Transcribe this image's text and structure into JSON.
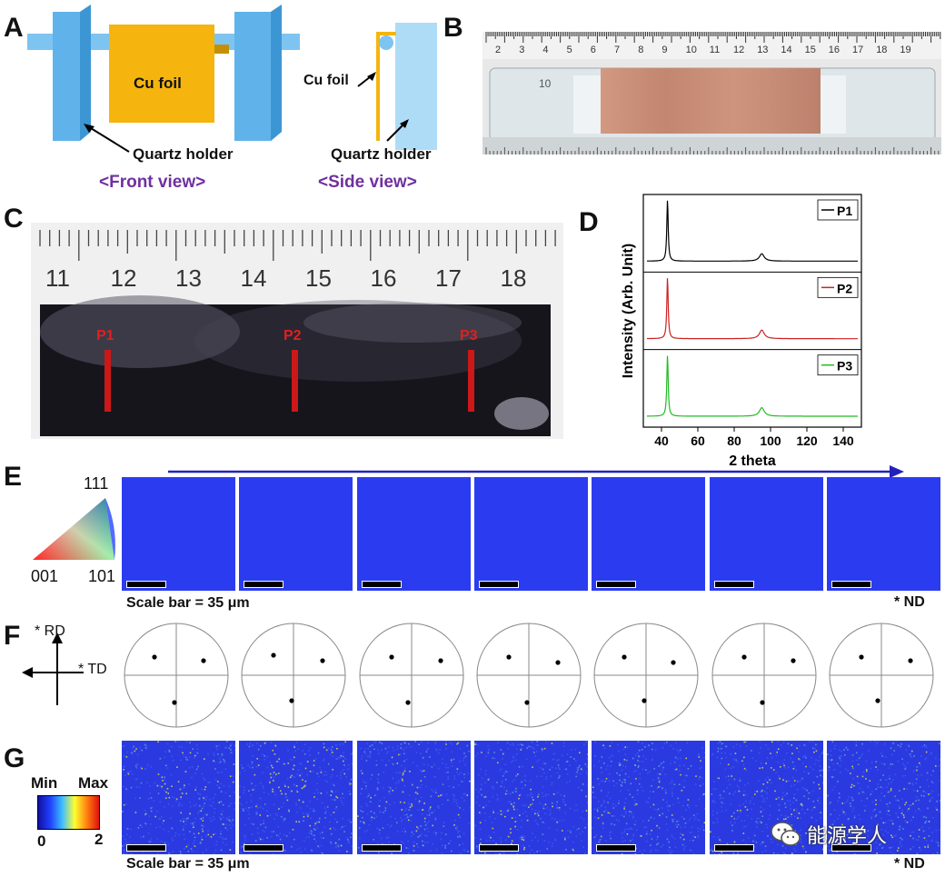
{
  "panels": {
    "a": "A",
    "b": "B",
    "c": "C",
    "d": "D",
    "e": "E",
    "f": "F",
    "g": "G"
  },
  "panel_a": {
    "cu_foil_label": "Cu foil",
    "quartz_front": "Quartz holder",
    "front_view": "<Front view>",
    "cu_foil_side": "Cu foil",
    "quartz_side": "Quartz holder",
    "side_view": "<Side view>"
  },
  "panel_b": {
    "ruler_numbers": [
      "2",
      "3",
      "4",
      "5",
      "6",
      "7",
      "8",
      "9",
      "10",
      "11",
      "12",
      "13",
      "14",
      "15",
      "16",
      "17",
      "18",
      "19"
    ],
    "holder_text": "10"
  },
  "panel_c": {
    "ruler_numbers": [
      "11",
      "12",
      "13",
      "14",
      "15",
      "16",
      "17",
      "18"
    ],
    "points": [
      "P1",
      "P2",
      "P3"
    ]
  },
  "chart_data": {
    "type": "line",
    "title": "",
    "xlabel": "2 theta",
    "ylabel": "Intensity (Arb. Unit)",
    "xlim": [
      30,
      150
    ],
    "xticks": [
      "40",
      "60",
      "80",
      "100",
      "120",
      "140"
    ],
    "series": [
      {
        "name": "P1",
        "color": "#000000",
        "peaks": [
          {
            "x": 43.3,
            "height": 1.0
          },
          {
            "x": 95.2,
            "height": 0.12
          }
        ]
      },
      {
        "name": "P2",
        "color": "#cc2222",
        "peaks": [
          {
            "x": 43.3,
            "height": 1.0
          },
          {
            "x": 95.2,
            "height": 0.14
          }
        ]
      },
      {
        "name": "P3",
        "color": "#22bb22",
        "peaks": [
          {
            "x": 43.3,
            "height": 1.0
          },
          {
            "x": 95.2,
            "height": 0.14
          }
        ]
      }
    ]
  },
  "panel_e": {
    "ipf_top": "111",
    "ipf_left": "001",
    "ipf_right": "101",
    "scale_bar": "Scale bar = 35 μm",
    "nd": "* ND"
  },
  "panel_f": {
    "rd": "* RD",
    "td": "* TD"
  },
  "panel_g": {
    "min": "Min",
    "max": "Max",
    "zero": "0",
    "two": "2",
    "scale_bar": "Scale bar = 35 μm",
    "nd": "* ND",
    "watermark": "能源学人"
  }
}
